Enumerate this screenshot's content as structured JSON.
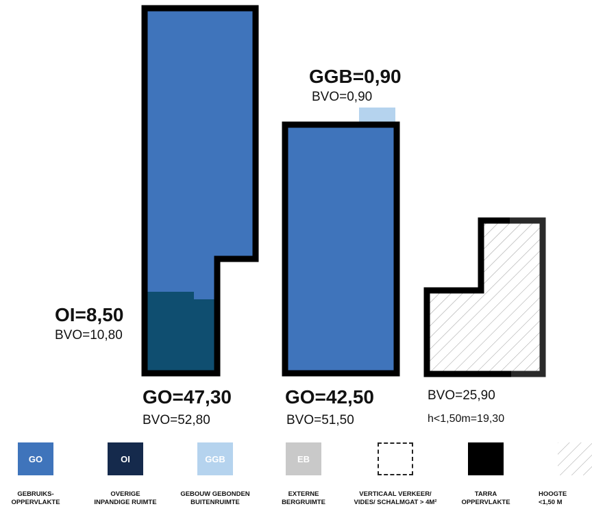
{
  "colors": {
    "go": "#3f74bb",
    "oi": "#0f4e70",
    "ggb": "#b5d3ee",
    "eb": "#c9c9c9",
    "tarra": "#000000",
    "hatch": "#9a9a9a"
  },
  "blocks": [
    {
      "title": "GO=47,30",
      "bvo": "BVO=52,80"
    },
    {
      "title": "GO=42,50",
      "bvo": "BVO=51,50"
    },
    {
      "bvo": "BVO=25,90",
      "extra": "h<1,50m=19,30"
    }
  ],
  "oi": {
    "title": "OI=8,50",
    "bvo": "BVO=10,80"
  },
  "ggb": {
    "title": "GGB=0,90",
    "bvo": "BVO=0,90"
  },
  "legend": [
    {
      "code": "GO",
      "caption": "GEBRUIKS-\nOPPERVLAKTE",
      "icon": "filled-square-go"
    },
    {
      "code": "OI",
      "caption": "OVERIGE\nINPANDIGE RUIMTE",
      "icon": "filled-square-oi"
    },
    {
      "code": "GGB",
      "caption": "GEBOUW GEBONDEN\nBUITENRUIMTE",
      "icon": "filled-square-ggb"
    },
    {
      "code": "EB",
      "caption": "EXTERNE\nBERGRUIMTE",
      "icon": "filled-square-eb"
    },
    {
      "code": "",
      "caption": "VERTICAAL VERKEER/\nVIDES/ SCHALMGAT > 4M²",
      "icon": "dashed-square"
    },
    {
      "code": "",
      "caption": "TARRA\nOPPERVLAKTE",
      "icon": "black-square"
    },
    {
      "code": "",
      "caption": "HOOGTE\n<1,50 M",
      "icon": "hatched-square"
    }
  ]
}
